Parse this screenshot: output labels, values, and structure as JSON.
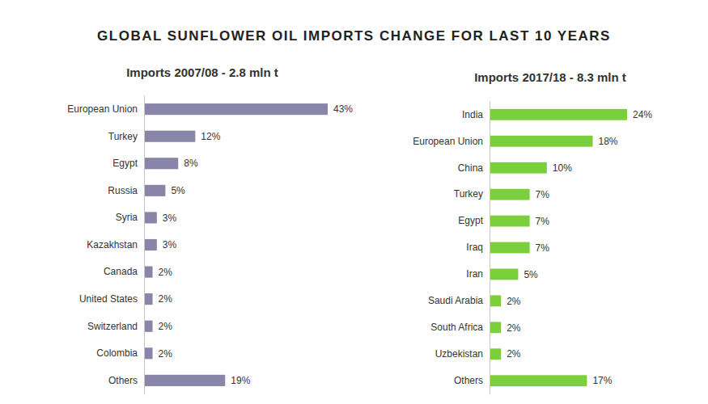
{
  "title": "GLOBAL SUNFLOWER OIL IMPORTS CHANGE FOR LAST 10 YEARS",
  "chart_data": [
    {
      "type": "bar",
      "title": "Imports 2007/08 - 2.8 mln t",
      "orientation": "horizontal",
      "categories": [
        "European Union",
        "Turkey",
        "Egypt",
        "Russia",
        "Syria",
        "Kazakhstan",
        "Canada",
        "United States",
        "Switzerland",
        "Colombia",
        "Others"
      ],
      "values": [
        43,
        12,
        8,
        5,
        3,
        3,
        2,
        2,
        2,
        2,
        19
      ],
      "value_labels": [
        "43%",
        "12%",
        "8%",
        "5%",
        "3%",
        "3%",
        "2%",
        "2%",
        "2%",
        "2%",
        "19%"
      ],
      "color": "#8985a8",
      "data_labels": true,
      "tick_labels": "y"
    },
    {
      "type": "bar",
      "title": "Imports 2017/18 - 8.3 mln t",
      "orientation": "horizontal",
      "categories": [
        "India",
        "European Union",
        "China",
        "Turkey",
        "Egypt",
        "Iraq",
        "Iran",
        "Saudi Arabia",
        "South Africa",
        "Uzbekistan",
        "Others"
      ],
      "values": [
        24,
        18,
        10,
        7,
        7,
        7,
        5,
        2,
        2,
        2,
        17
      ],
      "value_labels": [
        "24%",
        "18%",
        "10%",
        "7%",
        "7%",
        "7%",
        "5%",
        "2%",
        "2%",
        "2%",
        "17%"
      ],
      "color": "#7ccf3c",
      "data_labels": true,
      "tick_labels": "y"
    }
  ]
}
